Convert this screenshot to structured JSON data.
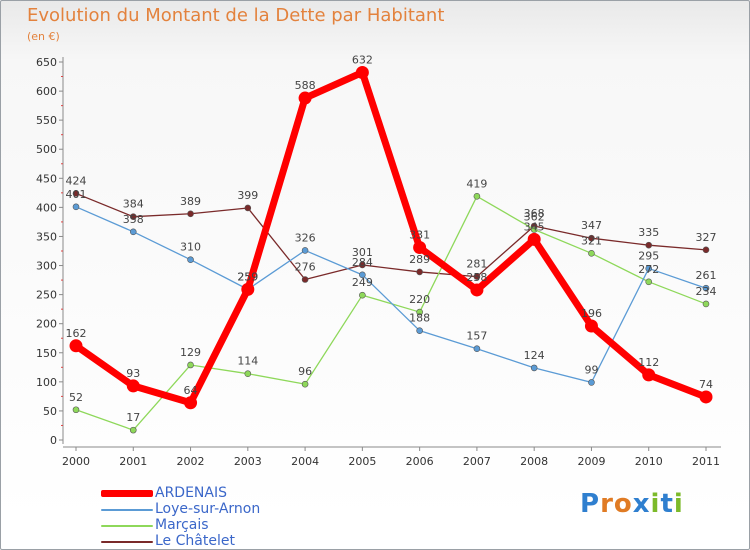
{
  "header": {
    "title": "Evolution du Montant de la Dette par Habitant",
    "subtitle": "(en €)"
  },
  "logo": {
    "text": "Proxiti",
    "letter_colors": [
      "#2f7fcf",
      "#e07b24",
      "#e07b24",
      "#2f7fcf",
      "#7cba2a",
      "#2f7fcf",
      "#7cba2a"
    ]
  },
  "chart_data": {
    "type": "line",
    "title": "Evolution du Montant de la Dette par Habitant",
    "subtitle": "(en €)",
    "x": [
      "2000",
      "2001",
      "2002",
      "2003",
      "2004",
      "2005",
      "2006",
      "2007",
      "2008",
      "2009",
      "2010",
      "2011"
    ],
    "ylim": [
      0,
      650
    ],
    "yticks": [
      0,
      50,
      100,
      150,
      200,
      250,
      300,
      350,
      400,
      450,
      500,
      550,
      600,
      650
    ],
    "grid": false,
    "legend_position": "bottom-left",
    "series": [
      {
        "name": "ARDENAIS",
        "color": "#ff0000",
        "values": [
          162,
          93,
          64,
          259,
          588,
          632,
          331,
          258,
          345,
          196,
          112,
          74
        ]
      },
      {
        "name": "Loye-sur-Arnon",
        "color": "#5b9bd5",
        "values": [
          401,
          358,
          310,
          259,
          326,
          284,
          188,
          157,
          124,
          99,
          295,
          261
        ]
      },
      {
        "name": "Marçais",
        "color": "#8ed85a",
        "values": [
          52,
          17,
          129,
          114,
          96,
          249,
          220,
          419,
          362,
          321,
          272,
          234
        ]
      },
      {
        "name": "Le Châtelet",
        "color": "#7a2a2a",
        "values": [
          424,
          384,
          389,
          399,
          276,
          301,
          289,
          281,
          368,
          347,
          335,
          327
        ]
      }
    ]
  }
}
